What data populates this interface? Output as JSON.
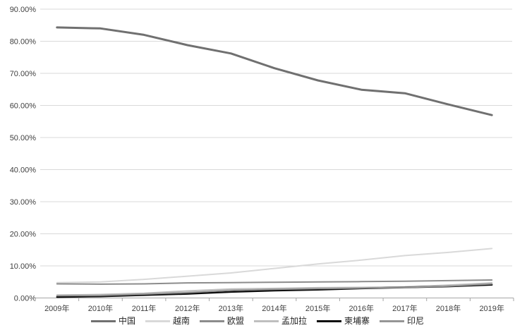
{
  "chart_data": {
    "type": "line",
    "title": "",
    "xlabel": "",
    "ylabel": "",
    "ylim": [
      0,
      90
    ],
    "grid": "horizontal",
    "legend_position": "bottom",
    "x_categories": [
      "2009年",
      "2010年",
      "2011年",
      "2012年",
      "2013年",
      "2014年",
      "2015年",
      "2016年",
      "2017年",
      "2018年",
      "2019年"
    ],
    "y_ticks": [
      "0.00%",
      "10.00%",
      "20.00%",
      "30.00%",
      "40.00%",
      "50.00%",
      "60.00%",
      "70.00%",
      "80.00%",
      "90.00%"
    ],
    "series": [
      {
        "id": "china",
        "name": "中国",
        "color": "#707070",
        "width": 3,
        "values": [
          84.3,
          84.0,
          82.0,
          78.8,
          76.2,
          71.6,
          67.8,
          64.9,
          63.8,
          60.3,
          57.0
        ]
      },
      {
        "id": "vietnam",
        "name": "越南",
        "color": "#d9d9d9",
        "width": 2,
        "values": [
          4.8,
          5.0,
          5.8,
          6.8,
          7.8,
          9.2,
          10.6,
          11.8,
          13.2,
          14.2,
          15.4
        ]
      },
      {
        "id": "eu",
        "name": "欧盟",
        "color": "#8c8c8c",
        "width": 2,
        "values": [
          4.4,
          4.3,
          4.4,
          4.7,
          4.8,
          4.9,
          5.0,
          5.1,
          5.2,
          5.4,
          5.6
        ]
      },
      {
        "id": "bangladesh",
        "name": "孟加拉",
        "color": "#bfbfbf",
        "width": 2,
        "values": [
          0.9,
          1.1,
          1.5,
          2.2,
          2.8,
          3.0,
          3.2,
          3.3,
          3.5,
          4.0,
          4.7
        ]
      },
      {
        "id": "cambodia",
        "name": "柬埔寨",
        "color": "#0d0d0d",
        "width": 2.5,
        "values": [
          0.3,
          0.5,
          0.9,
          1.3,
          1.9,
          2.3,
          2.6,
          3.0,
          3.3,
          3.6,
          4.1
        ]
      },
      {
        "id": "indonesia",
        "name": "印尼",
        "color": "#969696",
        "width": 2,
        "values": [
          0.7,
          0.8,
          1.2,
          1.7,
          2.4,
          2.7,
          2.9,
          3.1,
          3.3,
          3.7,
          4.4
        ]
      }
    ],
    "colors": {
      "background": "#ffffff",
      "gridline": "#d9d9d9",
      "axis_line": "#a6a6a6",
      "tick_label": "#404040"
    }
  }
}
